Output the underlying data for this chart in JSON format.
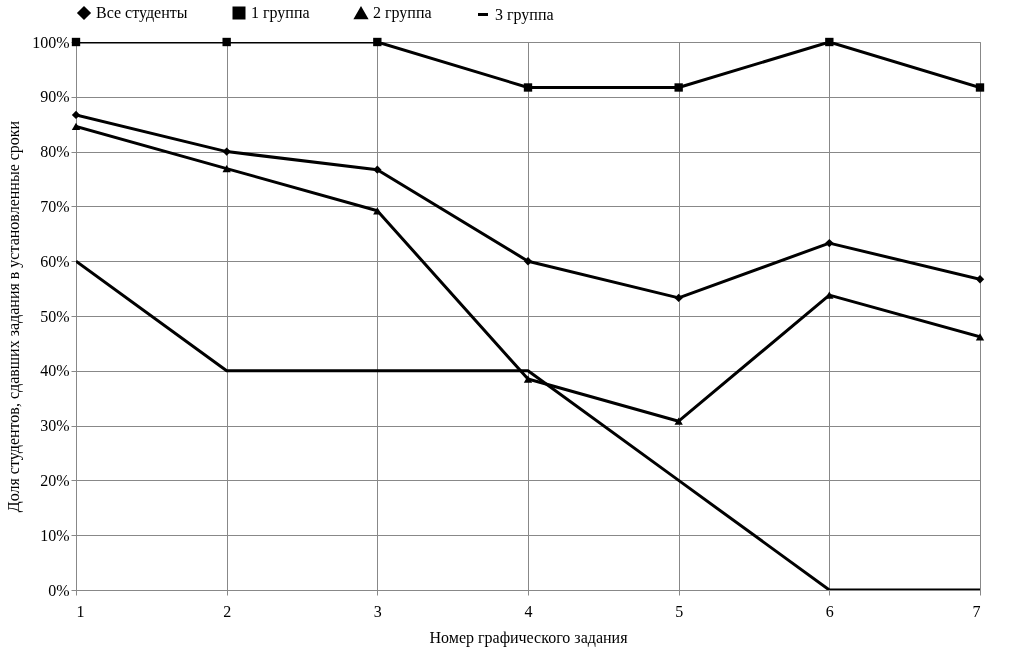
{
  "chart_data": {
    "type": "line",
    "xlabel": "Номер графического задания",
    "ylabel": "Доля студентов, сдавших задания в установленные сроки",
    "x": [
      1,
      2,
      3,
      4,
      5,
      6,
      7
    ],
    "series": [
      {
        "name": "Все студенты",
        "color": "#000000",
        "marker": "diamond",
        "values": [
          86.7,
          80,
          76.7,
          60,
          53.3,
          63.3,
          56.7
        ]
      },
      {
        "name": "1 группа",
        "color": "#000000",
        "marker": "square",
        "values": [
          100,
          100,
          100,
          91.7,
          91.7,
          100,
          91.7
        ]
      },
      {
        "name": "2 группа",
        "color": "#000000",
        "marker": "triangle",
        "values": [
          84.6,
          76.9,
          69.2,
          38.5,
          30.8,
          53.8,
          46.2
        ]
      },
      {
        "name": "3 группа",
        "color": "#000000",
        "marker": "none",
        "values": [
          60,
          40,
          40,
          40,
          20,
          0,
          0
        ]
      }
    ],
    "xlim": [
      1,
      7
    ],
    "xticks": [
      1,
      2,
      3,
      4,
      5,
      6,
      7
    ],
    "ylim": [
      0,
      100
    ],
    "yticks": [
      {
        "value": 0,
        "label": "0%"
      },
      {
        "value": 10,
        "label": "10%"
      },
      {
        "value": 20,
        "label": "20%"
      },
      {
        "value": 30,
        "label": "30%"
      },
      {
        "value": 40,
        "label": "40%"
      },
      {
        "value": 50,
        "label": "50%"
      },
      {
        "value": 60,
        "label": "60%"
      },
      {
        "value": 70,
        "label": "70%"
      },
      {
        "value": 80,
        "label": "80%"
      },
      {
        "value": 90,
        "label": "90%"
      },
      {
        "value": 100,
        "label": "100%"
      }
    ],
    "grid": true,
    "legend": "top",
    "line_style": "solid"
  }
}
